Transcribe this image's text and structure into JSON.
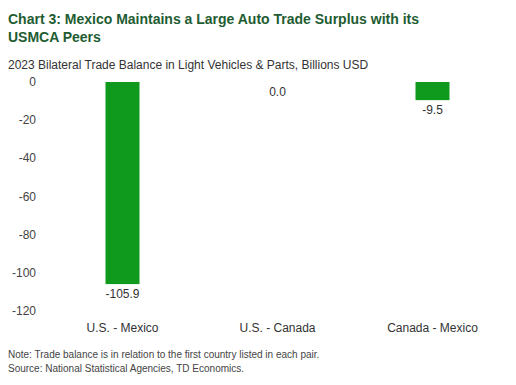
{
  "chart_data": {
    "type": "bar",
    "title": "Chart 3: Mexico Maintains a Large Auto Trade Surplus with its USMCA Peers",
    "subtitle": "2023 Bilateral Trade Balance in Light Vehicles & Parts, Billions USD",
    "categories": [
      "U.S. - Mexico",
      "U.S. - Canada",
      "Canada - Mexico"
    ],
    "values": [
      -105.9,
      0.0,
      -9.5
    ],
    "value_labels": [
      "-105.9",
      "0.0",
      "-9.5"
    ],
    "color": "#0f9a1e",
    "ylim": [
      -120,
      0
    ],
    "yticks": [
      -120,
      -100,
      -80,
      -60,
      -40,
      -20,
      0
    ],
    "grid": false,
    "data_labels": true,
    "notes": [
      "Note: Trade balance is in relation to the first country listed in each pair.",
      "Source: National Statistical Agencies, TD Economics."
    ]
  }
}
